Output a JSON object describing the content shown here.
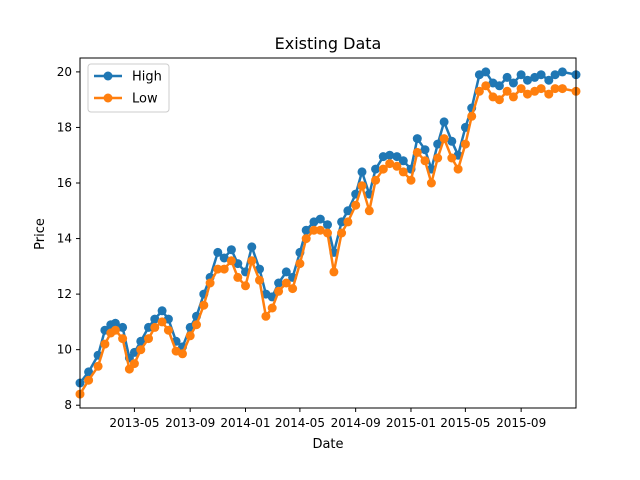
{
  "chart_data": {
    "type": "line",
    "title": "Existing Data",
    "xlabel": "Date",
    "ylabel": "Price",
    "xlim": [
      "2013-01-01",
      "2015-12-31"
    ],
    "ylim": [
      7.9,
      20.5
    ],
    "x_ticks": [
      "2013-05",
      "2013-09",
      "2014-01",
      "2014-05",
      "2014-09",
      "2015-01",
      "2015-05",
      "2015-09"
    ],
    "y_ticks": [
      8,
      10,
      12,
      14,
      16,
      18,
      20
    ],
    "grid": false,
    "legend": {
      "placement": "top-left"
    },
    "colors": {
      "High": "#1f77b4",
      "Low": "#ff7f0e"
    },
    "x": [
      "2013-01-01",
      "2013-01-20",
      "2013-02-10",
      "2013-02-25",
      "2013-03-10",
      "2013-03-20",
      "2013-04-05",
      "2013-04-20",
      "2013-05-01",
      "2013-05-15",
      "2013-06-01",
      "2013-06-15",
      "2013-07-01",
      "2013-07-15",
      "2013-08-01",
      "2013-08-15",
      "2013-09-01",
      "2013-09-15",
      "2013-10-01",
      "2013-10-15",
      "2013-11-01",
      "2013-11-15",
      "2013-12-01",
      "2013-12-15",
      "2014-01-01",
      "2014-01-15",
      "2014-02-01",
      "2014-02-15",
      "2014-03-01",
      "2014-03-15",
      "2014-04-01",
      "2014-04-15",
      "2014-05-01",
      "2014-05-15",
      "2014-06-01",
      "2014-06-15",
      "2014-07-01",
      "2014-07-15",
      "2014-08-01",
      "2014-08-15",
      "2014-09-01",
      "2014-09-15",
      "2014-10-01",
      "2014-10-15",
      "2014-11-01",
      "2014-11-15",
      "2014-12-01",
      "2014-12-15",
      "2015-01-01",
      "2015-01-15",
      "2015-02-01",
      "2015-02-15",
      "2015-03-01",
      "2015-03-15",
      "2015-04-01",
      "2015-04-15",
      "2015-05-01",
      "2015-05-15",
      "2015-06-01",
      "2015-06-15",
      "2015-07-01",
      "2015-07-15",
      "2015-08-01",
      "2015-08-15",
      "2015-09-01",
      "2015-09-15",
      "2015-10-01",
      "2015-10-15",
      "2015-11-01",
      "2015-11-15",
      "2015-12-01",
      "2015-12-31"
    ],
    "series": [
      {
        "name": "High",
        "values": [
          8.8,
          9.2,
          9.8,
          10.7,
          10.9,
          10.95,
          10.8,
          9.7,
          9.9,
          10.3,
          10.8,
          11.1,
          11.4,
          11.1,
          10.3,
          10.1,
          10.8,
          11.2,
          12.0,
          12.6,
          13.5,
          13.3,
          13.6,
          13.1,
          12.8,
          13.7,
          12.9,
          12.0,
          11.9,
          12.4,
          12.8,
          12.6,
          13.5,
          14.3,
          14.6,
          14.7,
          14.5,
          13.5,
          14.6,
          15.0,
          15.6,
          16.4,
          15.6,
          16.5,
          16.95,
          17.0,
          16.95,
          16.8,
          16.5,
          17.6,
          17.2,
          16.5,
          17.4,
          18.2,
          17.5,
          17.0,
          18.0,
          18.7,
          19.9,
          20.0,
          19.6,
          19.5,
          19.8,
          19.6,
          19.9,
          19.7,
          19.8,
          19.9,
          19.7,
          19.9,
          20.0,
          19.9
        ],
        "low": null
      },
      {
        "name": "Low",
        "values": [
          8.4,
          8.9,
          9.4,
          10.2,
          10.6,
          10.7,
          10.4,
          9.3,
          9.5,
          10.0,
          10.4,
          10.8,
          11.0,
          10.7,
          9.95,
          9.85,
          10.5,
          10.9,
          11.6,
          12.4,
          12.9,
          12.9,
          13.2,
          12.6,
          12.3,
          13.2,
          12.5,
          11.2,
          11.5,
          12.1,
          12.4,
          12.2,
          13.1,
          14.0,
          14.3,
          14.3,
          14.2,
          12.8,
          14.2,
          14.6,
          15.2,
          15.9,
          15.0,
          16.1,
          16.5,
          16.7,
          16.6,
          16.4,
          16.1,
          17.1,
          16.8,
          16.0,
          16.9,
          17.6,
          16.9,
          16.5,
          17.4,
          18.4,
          19.3,
          19.5,
          19.1,
          19.0,
          19.3,
          19.1,
          19.4,
          19.2,
          19.3,
          19.4,
          19.2,
          19.4,
          19.4,
          19.3
        ]
      }
    ]
  }
}
